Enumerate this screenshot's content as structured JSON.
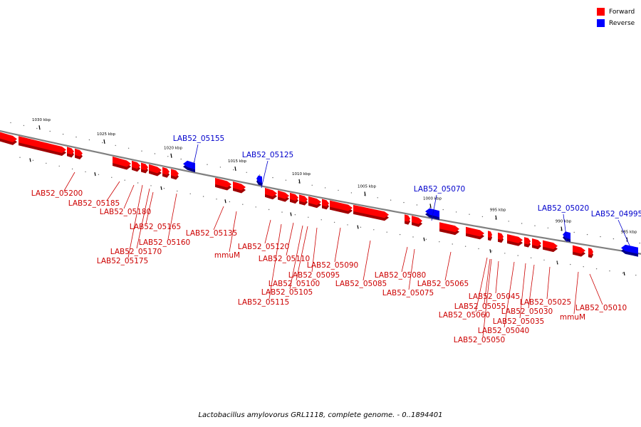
{
  "caption": "Lactobacillus amylovorus GRL1118, complete genome. - 0..1894401",
  "colors": {
    "forward": "#ff0000",
    "forward_shadow": "#a00000",
    "forward_label": "#cc0000",
    "reverse": "#0000ff",
    "reverse_shadow": "#00008a",
    "reverse_label": "#0000cc",
    "backbone": "#808080"
  },
  "legend": [
    {
      "label": "Forward",
      "color": "#ff0000"
    },
    {
      "label": "Reverse",
      "color": "#0000ff"
    }
  ],
  "scale_labels": [
    "1030 kbp",
    "1025 kbp",
    "1020 kbp",
    "1015 kbp",
    "1010 kbp",
    "1005 kbp",
    "1000 kbp",
    "995 kbp",
    "990 kbp",
    "985 kbp"
  ],
  "forward_labels": [
    "LAB52_05200",
    "LAB52_05185",
    "LAB52_05180",
    "LAB52_05165",
    "LAB52_05160",
    "LAB52_05170",
    "LAB52_05175",
    "LAB52_05135",
    "mmuM",
    "LAB52_05120",
    "LAB52_05110",
    "LAB52_05090",
    "LAB52_05095",
    "LAB52_05100",
    "LAB52_05105",
    "LAB52_05115",
    "LAB52_05085",
    "LAB52_05080",
    "LAB52_05075",
    "LAB52_05065",
    "LAB52_05045",
    "LAB52_05055",
    "LAB52_05060",
    "LAB52_05025",
    "LAB52_05030",
    "LAB52_05035",
    "LAB52_05040",
    "LAB52_05050",
    "mmuM",
    "LAB52_05010"
  ],
  "reverse_labels": [
    "LAB52_05155",
    "LAB52_05125",
    "LAB52_05070",
    "LAB52_05020",
    "LAB52_04995"
  ]
}
